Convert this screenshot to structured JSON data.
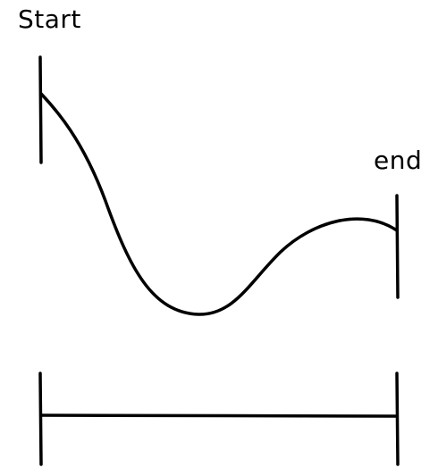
{
  "labels": {
    "start": "Start",
    "end": "end"
  },
  "colors": {
    "stroke": "#000000",
    "background": "#ffffff"
  }
}
